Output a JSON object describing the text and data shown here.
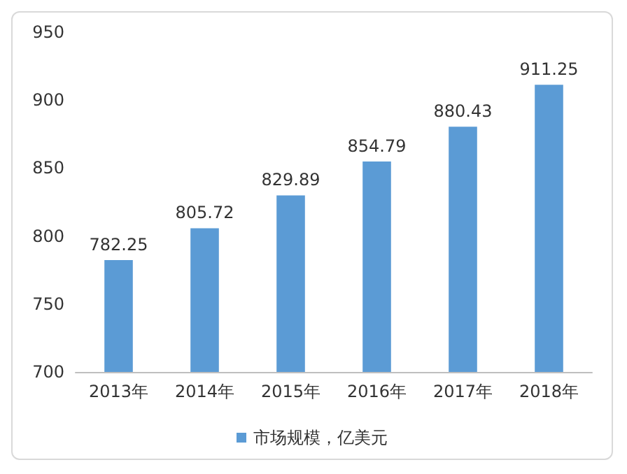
{
  "chart_data": {
    "type": "bar",
    "categories": [
      "2013年",
      "2014年",
      "2015年",
      "2016年",
      "2017年",
      "2018年"
    ],
    "series": [
      {
        "name": "市场规模，亿美元",
        "color": "#5b9bd5",
        "values": [
          782.25,
          805.72,
          829.89,
          854.79,
          880.43,
          911.25
        ]
      }
    ],
    "ylim": [
      700,
      950
    ],
    "yticks": [
      700,
      750,
      800,
      850,
      900,
      950
    ],
    "grid": false,
    "legend": "bottom",
    "data_labels": true
  }
}
